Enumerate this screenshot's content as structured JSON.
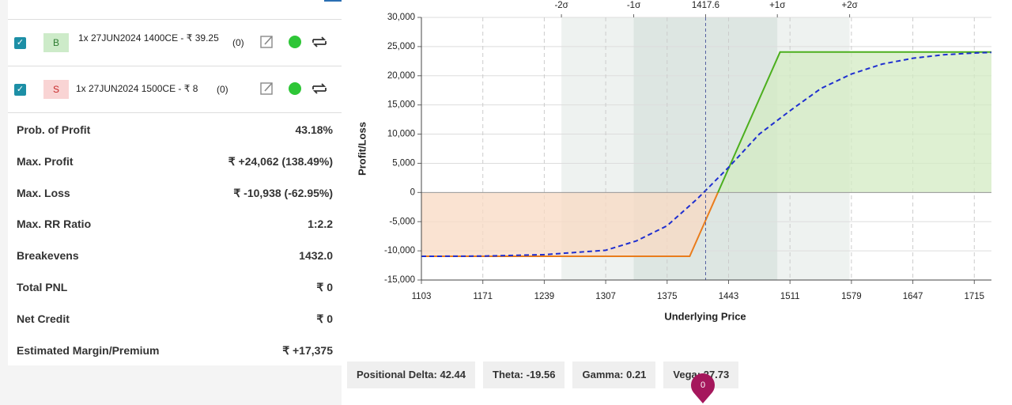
{
  "legs": [
    {
      "side": "B",
      "description": "1x 27JUN2024 1400CE - ₹ 39.25",
      "qty": "(0)"
    },
    {
      "side": "S",
      "description": "1x 27JUN2024 1500CE - ₹ 8",
      "qty": "(0)"
    }
  ],
  "stats": [
    {
      "label": "Prob. of Profit",
      "value": "43.18%"
    },
    {
      "label": "Max. Profit",
      "value": "₹ +24,062 (138.49%)"
    },
    {
      "label": "Max. Loss",
      "value": "₹ -10,938 (-62.95%)"
    },
    {
      "label": "Max. RR Ratio",
      "value": "1:2.2"
    },
    {
      "label": "Breakevens",
      "value": "1432.0"
    },
    {
      "label": "Total PNL",
      "value": "₹ 0"
    },
    {
      "label": "Net Credit",
      "value": "₹ 0"
    },
    {
      "label": "Estimated Margin/Premium",
      "value": "₹ +17,375"
    }
  ],
  "greeks": [
    "Positional Delta: 42.44",
    "Theta: -19.56",
    "Gamma: 0.21",
    "Vega: 27.73"
  ],
  "badge": "0",
  "chart_data": {
    "type": "line",
    "x_label": "Underlying Price",
    "y_label": "Profit/Loss",
    "xlim": [
      1103,
      1734
    ],
    "ylim": [
      -15000,
      30000
    ],
    "xticks": [
      1103,
      1171,
      1239,
      1307,
      1375,
      1443,
      1511,
      1579,
      1647,
      1715
    ],
    "yticks": [
      {
        "value": -15000,
        "label": "-15,000"
      },
      {
        "value": -10000,
        "label": "-10,000"
      },
      {
        "value": -5000,
        "label": "-5,000"
      },
      0,
      {
        "value": 5000,
        "label": "5,000"
      },
      {
        "value": 10000,
        "label": "10,000"
      },
      {
        "value": 15000,
        "label": "15,000"
      },
      {
        "value": 20000,
        "label": "20,000"
      },
      {
        "value": 25000,
        "label": "25,000"
      },
      {
        "value": 30000,
        "label": "30,000"
      }
    ],
    "x2ticks": [
      {
        "value": 1258,
        "label": "-2σ"
      },
      {
        "value": 1338,
        "label": "-1σ"
      },
      1417.6,
      {
        "value": 1497,
        "label": "+1σ"
      },
      {
        "value": 1577,
        "label": "+2σ"
      }
    ],
    "grid": true,
    "series": [
      {
        "x": [
          1103,
          1400,
          1500,
          1734
        ],
        "values": [
          -10938,
          -10938,
          24062,
          24062
        ],
        "color": "#4caf1e",
        "negative_color": "#e97c1c",
        "fill": true,
        "dashed": false
      },
      {
        "x": [
          1103,
          1171,
          1239,
          1307,
          1341,
          1375,
          1409,
          1443,
          1477,
          1511,
          1545,
          1579,
          1613,
          1647,
          1681,
          1715,
          1734
        ],
        "values": [
          -10938,
          -10900,
          -10650,
          -9900,
          -8300,
          -5700,
          -1000,
          4300,
          10000,
          14000,
          17800,
          20300,
          22000,
          23000,
          23600,
          23900,
          24000
        ],
        "color": "#1f2fd0",
        "fill": false,
        "dashed": true
      }
    ]
  }
}
